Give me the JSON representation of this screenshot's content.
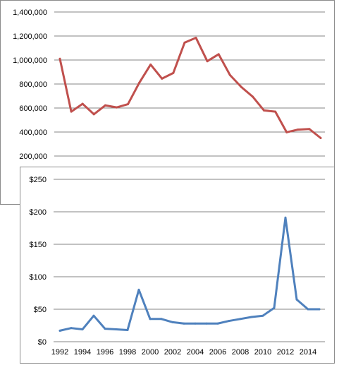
{
  "chart_data": [
    {
      "type": "line",
      "title": "",
      "xlabel": "",
      "ylabel": "",
      "x": [
        1992,
        1993,
        1994,
        1995,
        1996,
        1997,
        1998,
        1999,
        2000,
        2001,
        2002,
        2003,
        2004,
        2005,
        2006,
        2007,
        2008,
        2009,
        2010,
        2011,
        2012,
        2013,
        2014,
        2015
      ],
      "series": [
        {
          "color": "#c0504d",
          "values": [
            1010000,
            570000,
            635000,
            548000,
            622000,
            605000,
            632000,
            810000,
            962000,
            845000,
            892000,
            1145000,
            1185000,
            990000,
            1048000,
            875000,
            775000,
            695000,
            580000,
            570000,
            398000,
            420000,
            425000,
            350000
          ]
        }
      ],
      "ylim": [
        200000,
        1400000
      ],
      "yticks": [
        200000,
        400000,
        600000,
        800000,
        1000000,
        1200000,
        1400000
      ],
      "ytick_labels": [
        "200,000",
        "400,000",
        "600,000",
        "800,000",
        "1,000,000",
        "1,200,000",
        "1,400,000"
      ],
      "grid": true,
      "legend": "none"
    },
    {
      "type": "line",
      "title": "",
      "xlabel": "",
      "ylabel": "",
      "x": [
        1992,
        1993,
        1994,
        1995,
        1996,
        1997,
        1998,
        1999,
        2000,
        2001,
        2002,
        2003,
        2004,
        2005,
        2006,
        2007,
        2008,
        2009,
        2010,
        2011,
        2012,
        2013,
        2014,
        2015
      ],
      "series": [
        {
          "color": "#4f81bd",
          "values": [
            17,
            21,
            19,
            40,
            20,
            19,
            18,
            80,
            35,
            35,
            30,
            28,
            28,
            28,
            28,
            32,
            35,
            38,
            40,
            52,
            191,
            65,
            50,
            50
          ]
        }
      ],
      "ylim": [
        0,
        250
      ],
      "yticks": [
        0,
        50,
        100,
        150,
        200,
        250
      ],
      "ytick_labels": [
        "$0",
        "$50",
        "$100",
        "$150",
        "$200",
        "$250"
      ],
      "xtick_labels": [
        "1992",
        "1994",
        "1996",
        "1998",
        "2000",
        "2002",
        "2004",
        "2006",
        "2008",
        "2010",
        "2012",
        "2014"
      ],
      "grid": true,
      "legend": "none"
    }
  ]
}
